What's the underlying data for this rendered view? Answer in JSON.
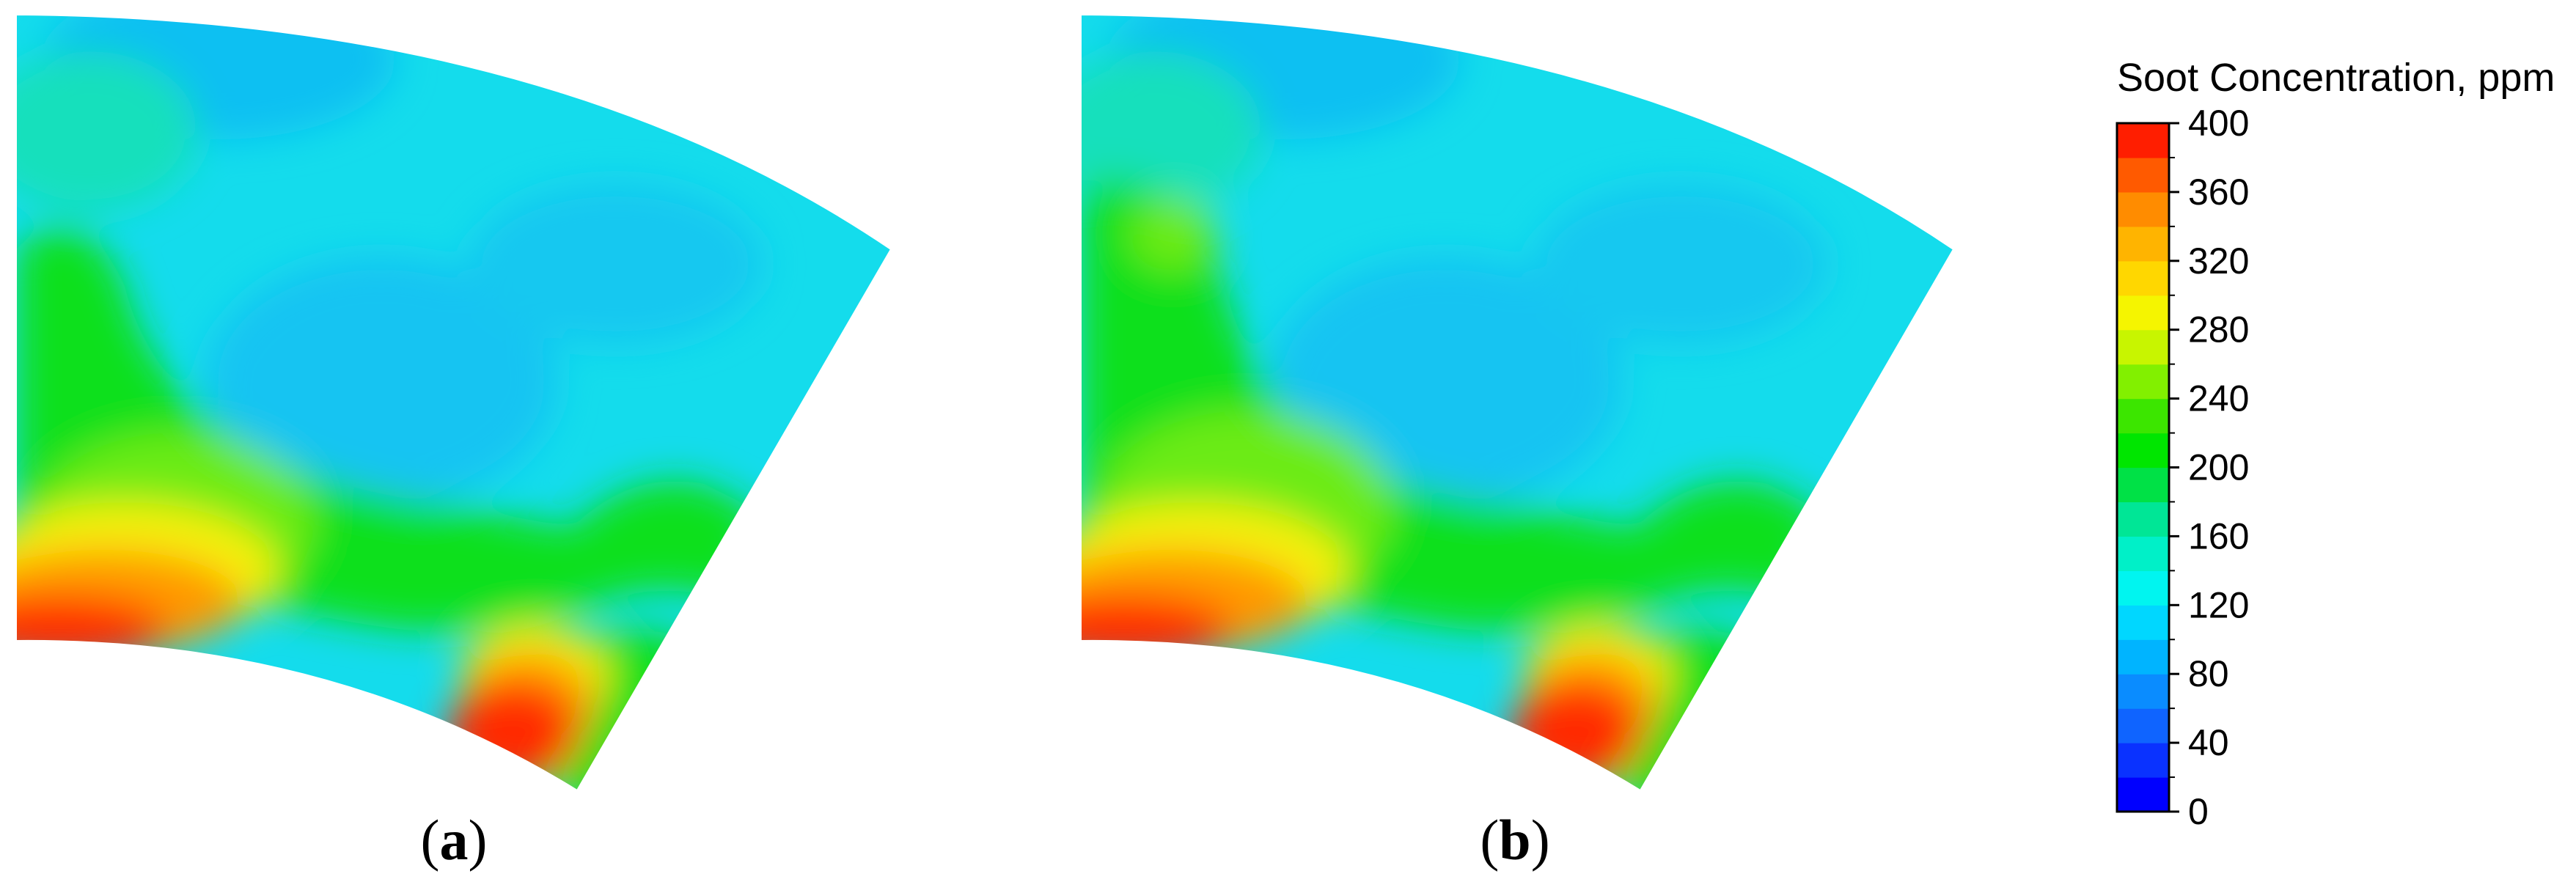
{
  "panels": [
    {
      "label_open": "(",
      "label_letter": "a",
      "label_close": ")"
    },
    {
      "label_open": "(",
      "label_letter": "b",
      "label_close": ")"
    }
  ],
  "colorbar": {
    "title": "Soot Concentration, ppm",
    "min": 0,
    "max": 400,
    "ticks": [
      "0",
      "40",
      "80",
      "120",
      "160",
      "200",
      "240",
      "280",
      "320",
      "360",
      "400"
    ],
    "band_colors": [
      "#0000ff",
      "#0a32ff",
      "#0f64ff",
      "#0a8cff",
      "#00b4ff",
      "#00d7ff",
      "#00f5f0",
      "#00f0c8",
      "#00e696",
      "#00e146",
      "#00e600",
      "#3ce600",
      "#82f000",
      "#c8f500",
      "#f5f500",
      "#ffd700",
      "#ffb400",
      "#ff8c00",
      "#ff5a00",
      "#ff1e00"
    ]
  }
}
